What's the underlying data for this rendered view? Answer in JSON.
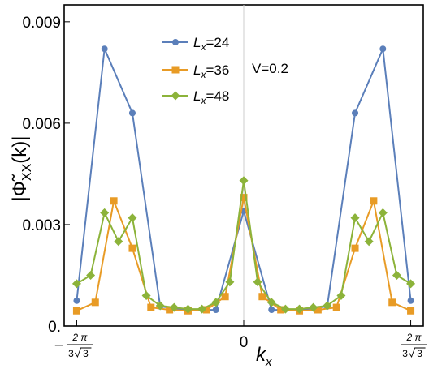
{
  "chart_data": {
    "type": "line",
    "title": "",
    "xlabel": "k",
    "xlabel_sub": "x",
    "ylabel": "|Φ̃",
    "ylabel_sub": "XX",
    "ylabel_tail": "(k)|",
    "annotation": "V=0.2",
    "xlim": [
      -1.3,
      1.3
    ],
    "ylim": [
      0,
      0.0095
    ],
    "yticks": [
      {
        "value": 0,
        "label": "0."
      },
      {
        "value": 0.003,
        "label": "0.003"
      },
      {
        "value": 0.006,
        "label": "0.006"
      },
      {
        "value": 0.009,
        "label": "0.009"
      }
    ],
    "xticks": [
      {
        "value": -1.2092,
        "sign": "−",
        "num": "2 π",
        "den": "3",
        "root": "3"
      },
      {
        "value": 0,
        "label": "0"
      },
      {
        "value": 1.2092,
        "sign": "",
        "num": "2 π",
        "den": "3",
        "root": "3"
      }
    ],
    "series": [
      {
        "name_main": "L",
        "name_sub": "x",
        "name_tail": "=24",
        "color": "#5b7fba",
        "marker": "circle",
        "x": [
          -1.2092,
          -1.0077,
          -0.8061,
          -0.6046,
          -0.4031,
          -0.2015,
          0,
          0.2015,
          0.4031,
          0.6046,
          0.8061,
          1.0077,
          1.2092
        ],
        "y": [
          0.00075,
          0.0082,
          0.0063,
          0.00058,
          0.00047,
          0.00048,
          0.0034,
          0.00048,
          0.00047,
          0.00058,
          0.0063,
          0.0082,
          0.00075
        ]
      },
      {
        "name_main": "L",
        "name_sub": "x",
        "name_tail": "=36",
        "color": "#e89b25",
        "marker": "square",
        "x": [
          -1.2092,
          -1.0749,
          -0.9405,
          -0.8061,
          -0.6718,
          -0.5374,
          -0.4031,
          -0.2687,
          -0.1344,
          0,
          0.1344,
          0.2687,
          0.4031,
          0.5374,
          0.6718,
          0.8061,
          0.9405,
          1.0749,
          1.2092
        ],
        "y": [
          0.00045,
          0.0007,
          0.0037,
          0.0023,
          0.00055,
          0.00048,
          0.00045,
          0.00048,
          0.00087,
          0.0038,
          0.00087,
          0.00048,
          0.00045,
          0.00048,
          0.00055,
          0.0023,
          0.0037,
          0.0007,
          0.00045
        ]
      },
      {
        "name_main": "L",
        "name_sub": "x",
        "name_tail": "=48",
        "color": "#8cb33a",
        "marker": "diamond",
        "x": [
          -1.2092,
          -1.1084,
          -1.0077,
          -0.9069,
          -0.8061,
          -0.7054,
          -0.6046,
          -0.5038,
          -0.4031,
          -0.3023,
          -0.2015,
          -0.1008,
          0,
          0.1008,
          0.2015,
          0.3023,
          0.4031,
          0.5038,
          0.6046,
          0.7054,
          0.8061,
          0.9069,
          1.0077,
          1.1084,
          1.2092
        ],
        "y": [
          0.00125,
          0.0015,
          0.00335,
          0.0025,
          0.0032,
          0.0009,
          0.0006,
          0.00055,
          0.0005,
          0.0005,
          0.0007,
          0.0013,
          0.0043,
          0.0013,
          0.0007,
          0.0005,
          0.0005,
          0.00055,
          0.0006,
          0.0009,
          0.0032,
          0.0025,
          0.00335,
          0.0015,
          0.00125
        ]
      }
    ]
  }
}
